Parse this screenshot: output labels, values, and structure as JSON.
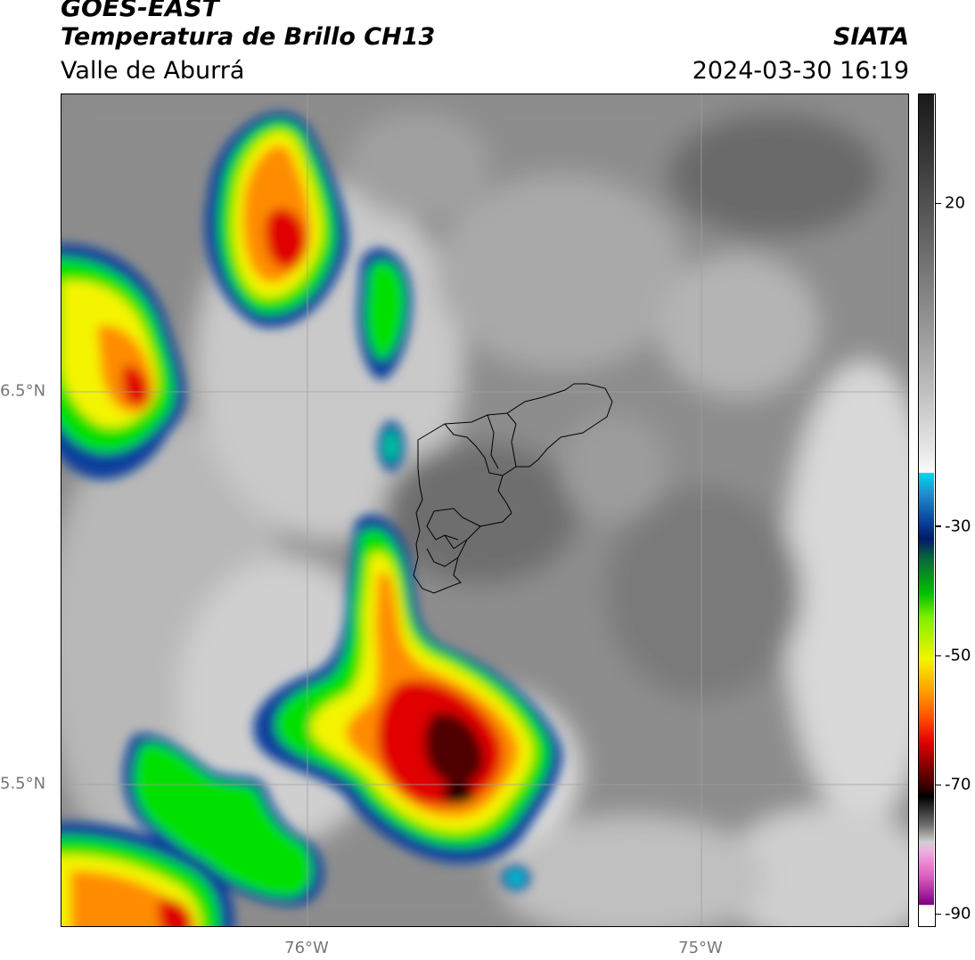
{
  "header": {
    "satellite": "GOES-EAST",
    "product": "Temperatura de Brillo CH13",
    "region": "Valle de Aburrá",
    "organization": "SIATA",
    "datetime": "2024-03-30 16:19"
  },
  "map": {
    "lat_labels": [
      "6.5°N",
      "5.5°N"
    ],
    "lon_labels": [
      "76°W",
      "75°W"
    ]
  },
  "colorbar": {
    "tick_labels": [
      "20",
      "-30",
      "-50",
      "-70",
      "-90"
    ],
    "range": [
      -92,
      37
    ],
    "colors": {
      "warm_dark": "#202020",
      "warm_mid": "#8c8c8c",
      "warm_light": "#f5f5f5",
      "cyan": "#00d8e8",
      "blue": "#0a3f9c",
      "navy": "#001a66",
      "green": "#00e000",
      "yellow": "#f4f400",
      "orange": "#ff8c00",
      "red": "#e00000",
      "dark_red": "#500000",
      "black": "#000000",
      "pink": "#e060c0",
      "purple": "#800080"
    }
  }
}
